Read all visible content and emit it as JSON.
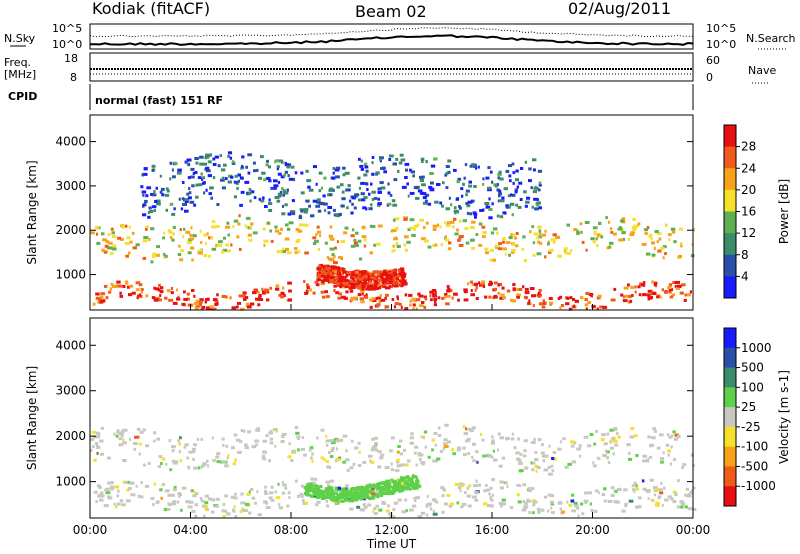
{
  "header": {
    "station": "Kodiak (fitACF)",
    "beam": "Beam 02",
    "date": "02/Aug/2011"
  },
  "summary_panels": {
    "nsky_label": "N.Sky",
    "nsky_ticks": [
      "10^5",
      "10^0"
    ],
    "nsearch_label": "N.Search",
    "nsearch_ticks": [
      "10^5",
      "10^0"
    ],
    "freq_label_1": "Freq.",
    "freq_label_2": "[MHz]",
    "freq_ticks": [
      "18",
      "8"
    ],
    "nave_label": "Nave",
    "nave_ticks": [
      "60",
      "0"
    ],
    "cpid_label": "CPID",
    "cpid_value": "normal (fast) 151 RF"
  },
  "chart_data": [
    {
      "type": "heatmap",
      "title": "",
      "xlabel": "Time UT",
      "ylabel": "Slant Range [km]",
      "x_ticks": [
        "00:00",
        "04:00",
        "08:00",
        "12:00",
        "16:00",
        "20:00",
        "00:00"
      ],
      "y_ticks": [
        "1000",
        "2000",
        "3000",
        "4000"
      ],
      "ylim": [
        200,
        4600
      ],
      "colorbar": {
        "label": "Power [dB]",
        "ticks": [
          "28",
          "24",
          "20",
          "16",
          "12",
          "8",
          "4"
        ],
        "range": [
          0,
          30
        ],
        "colors": [
          "#1a1aff",
          "#2a4fa8",
          "#3b8c6a",
          "#5fb050",
          "#f5e02a",
          "#f7a21b",
          "#f05a1a",
          "#e81010"
        ]
      },
      "features": [
        {
          "name": "low echo band",
          "t_start": 0,
          "t_end": 24,
          "range_km": [
            300,
            700
          ],
          "power_db": 26
        },
        {
          "name": "midday enhancement",
          "t_start": 9,
          "t_end": 12.5,
          "range_km": [
            800,
            1200
          ],
          "power_db": 28
        },
        {
          "name": "upper echo band",
          "t_start": 0,
          "t_end": 24,
          "range_km": [
            1400,
            2200
          ],
          "power_db": 18
        },
        {
          "name": "scattered far echoes",
          "t_start": 2,
          "t_end": 18,
          "range_km": [
            2400,
            3600
          ],
          "power_db": 6
        }
      ]
    },
    {
      "type": "heatmap",
      "title": "",
      "xlabel": "Time UT",
      "ylabel": "Slant Range [km]",
      "x_ticks": [
        "00:00",
        "04:00",
        "08:00",
        "12:00",
        "16:00",
        "20:00",
        "00:00"
      ],
      "y_ticks": [
        "1000",
        "2000",
        "3000",
        "4000"
      ],
      "ylim": [
        200,
        4600
      ],
      "colorbar": {
        "label": "Velocity [m s-1]",
        "ticks": [
          "1000",
          "500",
          "100",
          "25",
          "-25",
          "-100",
          "-500",
          "-1000"
        ],
        "range": [
          -1200,
          1200
        ],
        "colors": [
          "#e81010",
          "#f05a1a",
          "#f7a21b",
          "#f5e02a",
          "#c8c8c0",
          "#5fd04a",
          "#3b8c6a",
          "#2a4fa8",
          "#1a1aff"
        ]
      },
      "features": [
        {
          "name": "ground scatter low band",
          "t_start": 0,
          "t_end": 24,
          "range_km": [
            300,
            900
          ],
          "velocity_ms": 0
        },
        {
          "name": "ground scatter upper band",
          "t_start": 0,
          "t_end": 24,
          "range_km": [
            1300,
            2100
          ],
          "velocity_ms": 0
        },
        {
          "name": "positive flow patch",
          "t_start": 8.5,
          "t_end": 13,
          "range_km": [
            700,
            1000
          ],
          "velocity_ms": 150
        }
      ]
    }
  ]
}
